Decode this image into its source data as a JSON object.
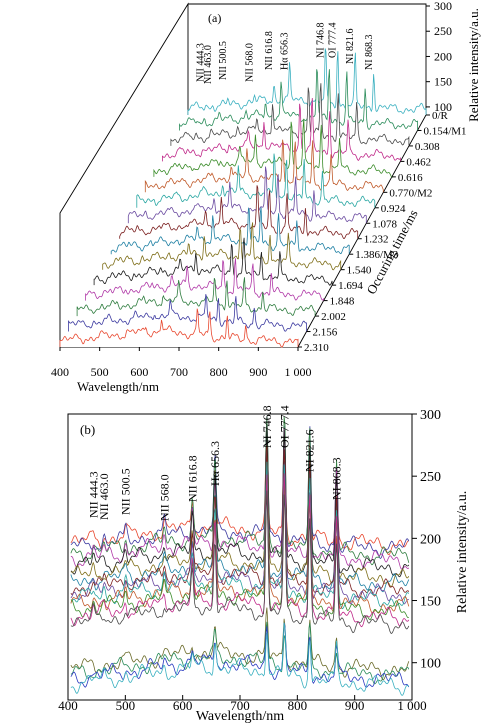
{
  "chart_data": [
    {
      "panel_label": "(a)",
      "type": "line",
      "view": "3d-waterfall",
      "title": "",
      "xlabel": "Wavelength/nm",
      "ylabel": "Occuring time/ms",
      "zlabel": "Relative intensity/a.u.",
      "x_ticks": [
        "400",
        "500",
        "600",
        "700",
        "800",
        "900",
        "1 000"
      ],
      "xlim": [
        400,
        1000
      ],
      "z_ticks": [
        "100",
        "150",
        "200",
        "250",
        "300"
      ],
      "zlim": [
        80,
        300
      ],
      "depth_ticks": [
        "0/R",
        "0.154/M1",
        "0.308",
        "0.462",
        "0.616",
        "0.770/M2",
        "0.924",
        "1.078",
        "1.232",
        "1.386/M3",
        "1.540",
        "1.694",
        "1.848",
        "2.002",
        "2.156",
        "2.310"
      ],
      "peak_labels": [
        "NII 444.3",
        "NII 463.0",
        "NII 500.5",
        "NII 568.0",
        "NII 616.8",
        "Hα 656.3",
        "NI 746.8",
        "OI 777.4",
        "NI 821.6",
        "NI 868.3"
      ],
      "grid": false
    },
    {
      "panel_label": "(b)",
      "type": "line",
      "title": "",
      "xlabel": "Wavelength/nm",
      "ylabel": "Relative intensity/a.u.",
      "x_ticks": [
        "400",
        "500",
        "600",
        "700",
        "800",
        "900",
        "1 000"
      ],
      "xlim": [
        400,
        1000
      ],
      "y_ticks": [
        "100",
        "150",
        "200",
        "250",
        "300"
      ],
      "ylim": [
        70,
        300
      ],
      "peak_labels": [
        "NII 444.3",
        "NII 463.0",
        "NII 500.5",
        "NII 568.0",
        "NII 616.8",
        "Hα 656.3",
        "NI 746.8",
        "OI 777.4",
        "NI 821.6",
        "NI 868.3"
      ],
      "peaks": [
        {
          "x": 444.3,
          "h": 0.06
        },
        {
          "x": 463.0,
          "h": 0.05
        },
        {
          "x": 500.5,
          "h": 0.08
        },
        {
          "x": 568.0,
          "h": 0.1
        },
        {
          "x": 616.8,
          "h": 0.28
        },
        {
          "x": 656.3,
          "h": 0.6
        },
        {
          "x": 746.8,
          "h": 1.0
        },
        {
          "x": 777.4,
          "h": 1.0
        },
        {
          "x": 821.6,
          "h": 0.9
        },
        {
          "x": 868.3,
          "h": 0.68
        }
      ],
      "series": [
        {
          "baseline": 195,
          "color": "#e8482f"
        },
        {
          "baseline": 192,
          "color": "#3c3aa0"
        },
        {
          "baseline": 186,
          "color": "#2f7d3f"
        },
        {
          "baseline": 182,
          "color": "#b13aa8"
        },
        {
          "baseline": 176,
          "color": "#1c1c1c"
        },
        {
          "baseline": 168,
          "color": "#7f6f1a"
        },
        {
          "baseline": 163,
          "color": "#1d7fa3"
        },
        {
          "baseline": 158,
          "color": "#7b1f1f"
        },
        {
          "baseline": 154,
          "color": "#6a4aa0"
        },
        {
          "baseline": 150,
          "color": "#2aa7a3"
        },
        {
          "baseline": 145,
          "color": "#c05a2a"
        },
        {
          "baseline": 141,
          "color": "#3b8c2a"
        },
        {
          "baseline": 136,
          "color": "#c02a8a"
        },
        {
          "baseline": 131,
          "color": "#4a4a4a"
        },
        {
          "baseline": 94,
          "color": "#6b6b2a"
        },
        {
          "baseline": 90,
          "color": "#2a8c5a"
        },
        {
          "baseline": 86,
          "color": "#2a3ac0"
        },
        {
          "baseline": 82,
          "color": "#3ab0c0"
        }
      ],
      "grid": false
    }
  ]
}
